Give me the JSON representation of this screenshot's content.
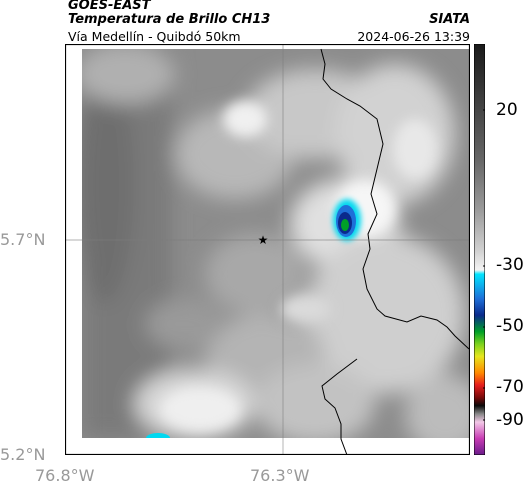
{
  "header": {
    "satellite": "GOES-EAST",
    "product": "Temperatura de Brillo CH13",
    "organization": "SIATA",
    "route": "Vía Medellín - Quibdó 50km",
    "datetime": "2024-06-26 13:39"
  },
  "axes": {
    "lat_ticks": [
      "5.7°N",
      "5.2°N"
    ],
    "lon_ticks": [
      "76.8°W",
      "76.3°W"
    ]
  },
  "colorbar": {
    "ticks": [
      "20",
      "-30",
      "-50",
      "-70",
      "-90"
    ],
    "colors": [
      "#1a1a1a",
      "#3a3a3a",
      "#666666",
      "#999999",
      "#cfcfcf",
      "#f4f4f4",
      "#00e5ff",
      "#1e6fd8",
      "#0a2a8c",
      "#00a028",
      "#7cd21e",
      "#e6e61e",
      "#ff8a00",
      "#e61e1e",
      "#7a0a0a",
      "#0a0a0a",
      "#888888",
      "#f2c8e6",
      "#c83cb4",
      "#6a1a8a"
    ]
  },
  "map": {
    "marker": "star",
    "colors": {
      "background_gray": "#8a8a8a",
      "cloud_white": "#ececec",
      "cloud_core_blue": "#0a2a8c",
      "cloud_core_green": "#00a028",
      "cyan": "#00d8f0"
    }
  }
}
